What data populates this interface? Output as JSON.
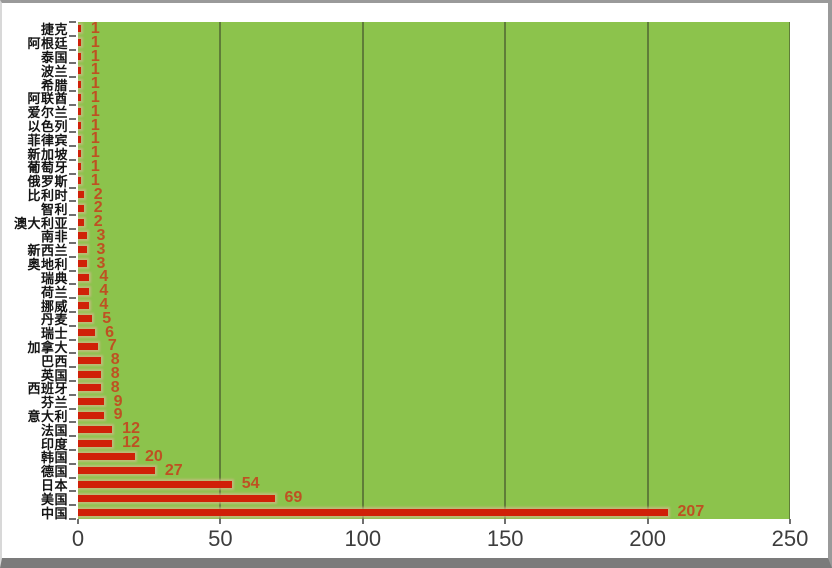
{
  "chart_data": {
    "type": "bar",
    "orientation": "horizontal",
    "title": "",
    "xlabel": "",
    "ylabel": "",
    "categories": [
      "捷克",
      "阿根廷",
      "泰国",
      "波兰",
      "希腊",
      "阿联酋",
      "爱尔兰",
      "以色列",
      "菲律宾",
      "新加坡",
      "葡萄牙",
      "俄罗斯",
      "比利时",
      "智利",
      "澳大利亚",
      "南非",
      "新西兰",
      "奥地利",
      "瑞典",
      "荷兰",
      "挪威",
      "丹麦",
      "瑞士",
      "加拿大",
      "巴西",
      "英国",
      "西班牙",
      "芬兰",
      "意大利",
      "法国",
      "印度",
      "韩国",
      "德国",
      "日本",
      "美国",
      "中国"
    ],
    "values": [
      1,
      1,
      1,
      1,
      1,
      1,
      1,
      1,
      1,
      1,
      1,
      1,
      2,
      2,
      2,
      3,
      3,
      3,
      4,
      4,
      4,
      5,
      6,
      7,
      8,
      8,
      8,
      9,
      9,
      12,
      12,
      20,
      27,
      54,
      69,
      207
    ],
    "xlim": [
      0,
      250
    ],
    "xticks": [
      0,
      50,
      100,
      150,
      200,
      250
    ],
    "grid": "vertical-major",
    "legend": null,
    "data_labels": true
  },
  "colors": {
    "plot_background": "#8cc34c",
    "bar": "#d02008",
    "value_label": "#be5122",
    "category_label": "#141414",
    "axis_label": "#3d3d3d",
    "gridline": "#5f7d38",
    "tick": "#6f6f6f"
  }
}
